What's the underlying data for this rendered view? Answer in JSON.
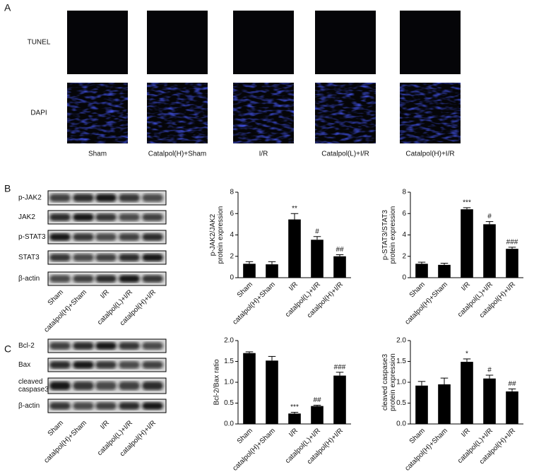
{
  "panel_a": {
    "label": "A",
    "rows": [
      "TUNEL",
      "DAPI"
    ],
    "columns": [
      "Sham",
      "Catalpol(H)+Sham",
      "I/R",
      "Catalpol(L)+I/R",
      "Catalpol(H)+I/R"
    ]
  },
  "panel_b": {
    "label": "B",
    "blots": [
      [
        "p-JAK2"
      ],
      [
        "JAK2"
      ],
      [
        "p-STAT3"
      ],
      [
        "STAT3"
      ],
      [
        "β-actin"
      ]
    ],
    "lanes": [
      "Sham",
      "catalpol(H)+Sham",
      "I/R",
      "catalpol(L)+I/R",
      "catalpol(H)+I/R"
    ]
  },
  "panel_c": {
    "label": "C",
    "blots": [
      [
        "Bcl-2"
      ],
      [
        "Bax"
      ],
      [
        "cleaved",
        "caspase3"
      ],
      [
        "β-actin"
      ]
    ],
    "lanes": [
      "Sham",
      "catalpol(H)+Sham",
      "I/R",
      "catalpol(L)+I/R",
      "catalpol(H)+I/R"
    ]
  },
  "chart_data": [
    {
      "type": "bar",
      "ylabel": [
        "p-JAK2/JAK2",
        "protein expression"
      ],
      "categories": [
        "Sham",
        "catalpol(H)+Sham",
        "I/R",
        "catalpol(L)+I/R",
        "catalpol(H)+I/R"
      ],
      "values": [
        1.3,
        1.25,
        5.45,
        3.55,
        2.0
      ],
      "errors": [
        0.2,
        0.25,
        0.55,
        0.3,
        0.15
      ],
      "annotations": [
        null,
        null,
        "**",
        "#",
        "##"
      ],
      "color": "#000000",
      "ylim": [
        0,
        8
      ],
      "yticks": [
        0,
        2,
        4,
        6,
        8
      ],
      "grid": false
    },
    {
      "type": "bar",
      "ylabel": [
        "p-STAT3/STAT3",
        "protein expression"
      ],
      "categories": [
        "Sham",
        "catalpol(H)+Sham",
        "I/R",
        "catalpol(L)+I/R",
        "catalpol(H)+I/R"
      ],
      "values": [
        1.3,
        1.2,
        6.4,
        5.0,
        2.7
      ],
      "errors": [
        0.15,
        0.15,
        0.15,
        0.25,
        0.15
      ],
      "annotations": [
        null,
        null,
        "***",
        "#",
        "###"
      ],
      "color": "#000000",
      "ylim": [
        0,
        8
      ],
      "yticks": [
        0,
        2,
        4,
        6,
        8
      ],
      "grid": false
    },
    {
      "type": "bar",
      "ylabel": [
        "Bcl-2/Bax ratio"
      ],
      "categories": [
        "Sham",
        "catalpol(H)+Sham",
        "I/R",
        "catalpol(L)+I/R",
        "catalpol(H)+I/R"
      ],
      "values": [
        1.7,
        1.52,
        0.25,
        0.43,
        1.16
      ],
      "errors": [
        0.03,
        0.1,
        0.03,
        0.02,
        0.08
      ],
      "annotations": [
        null,
        null,
        "***",
        "##",
        "###"
      ],
      "color": "#000000",
      "ylim": [
        0,
        2
      ],
      "yticks": [
        {
          "value": 0,
          "label": "0.0"
        },
        0.5,
        {
          "value": 1,
          "label": "1.0"
        },
        1.5,
        {
          "value": 2,
          "label": "2.0"
        }
      ],
      "grid": false
    },
    {
      "type": "bar",
      "ylabel": [
        "cleaved caspase3",
        "protein expression"
      ],
      "categories": [
        "Sham",
        "catalpol(H)+Sham",
        "I/R",
        "catalpol(L)+I/R",
        "catalpol(H)+I/R"
      ],
      "values": [
        0.92,
        0.95,
        1.49,
        1.09,
        0.78
      ],
      "errors": [
        0.1,
        0.15,
        0.07,
        0.08,
        0.06
      ],
      "annotations": [
        null,
        null,
        "*",
        "#",
        "##"
      ],
      "color": "#000000",
      "ylim": [
        0,
        2
      ],
      "yticks": [
        {
          "value": 0,
          "label": "0.0"
        },
        0.5,
        {
          "value": 1,
          "label": "1.0"
        },
        1.5,
        {
          "value": 2,
          "label": "2.0"
        }
      ],
      "grid": false
    }
  ]
}
